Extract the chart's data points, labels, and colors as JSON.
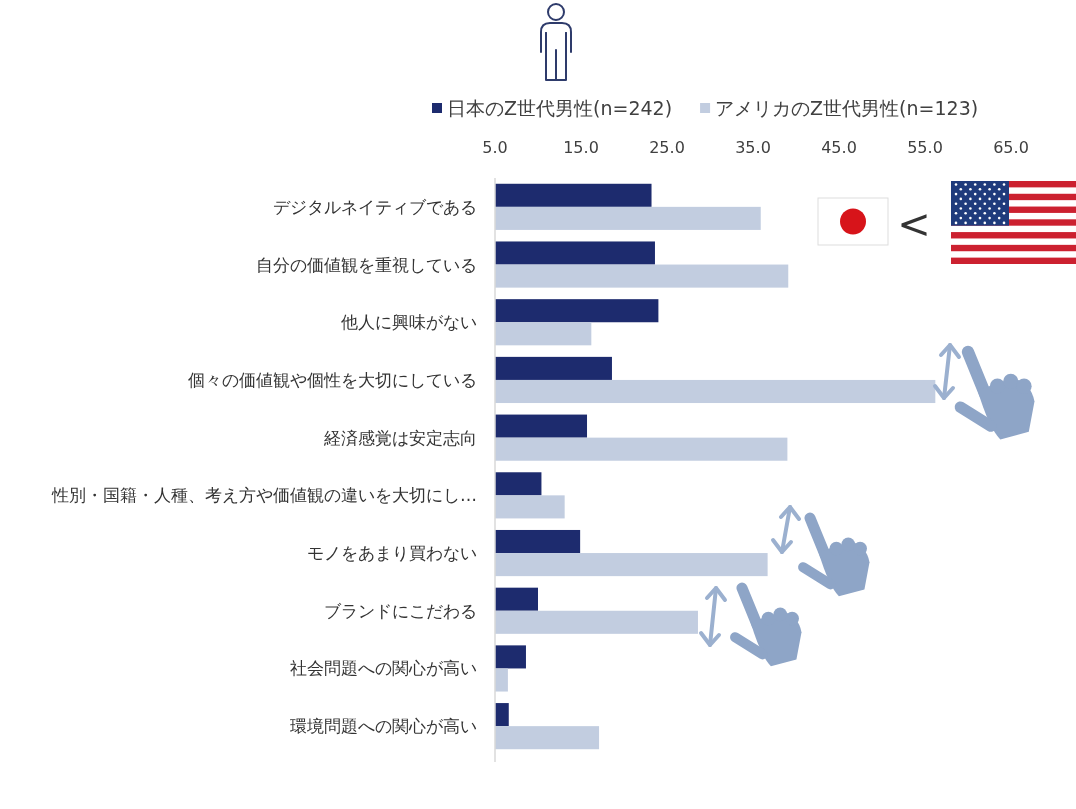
{
  "chart_data": {
    "type": "bar",
    "orientation": "horizontal",
    "categories": [
      "デジタルネイティブである",
      "自分の価値観を重視している",
      "他人に興味がない",
      "個々の価値観や個性を大切にしている",
      "経済感覚は安定志向",
      "性別・国籍・人種、考え方や価値観の違いを大切にし…",
      "モノをあまり買わない",
      "ブランドにこだわる",
      "社会問題への関心が高い",
      "環境問題への関心が高い"
    ],
    "series": [
      {
        "name": "日本のZ世代男性(n=242)",
        "color": "#1d2b6e",
        "values": [
          23.2,
          23.6,
          24.0,
          18.6,
          15.7,
          10.4,
          14.9,
          10.0,
          8.6,
          6.6
        ]
      },
      {
        "name": "アメリカのZ世代男性(n=123)",
        "color": "#c2cde0",
        "values": [
          35.9,
          39.1,
          16.2,
          56.2,
          39.0,
          13.1,
          36.7,
          28.6,
          6.5,
          17.1
        ]
      }
    ],
    "xlim": [
      5,
      65
    ],
    "xticks": [
      {
        "value": 5,
        "label": "5.0"
      },
      {
        "value": 15,
        "label": "15.0"
      },
      {
        "value": 25,
        "label": "25.0"
      },
      {
        "value": 35,
        "label": "35.0"
      },
      {
        "value": 45,
        "label": "45.0"
      },
      {
        "value": 55,
        "label": "55.0"
      },
      {
        "value": 65,
        "label": "65.0"
      }
    ],
    "legend": "top",
    "annotations": [
      "<"
    ]
  }
}
